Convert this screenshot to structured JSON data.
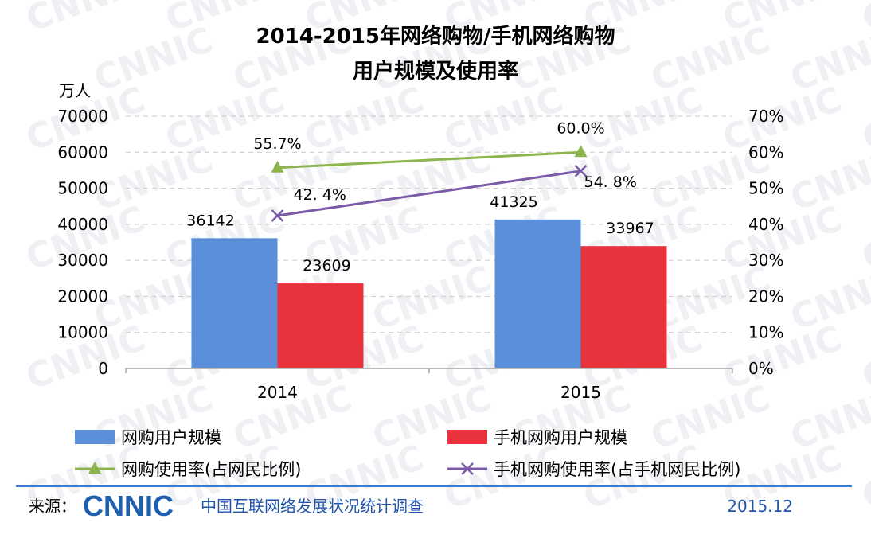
{
  "chart_data": {
    "type": "bar",
    "title_line1": "2014-2015年网络购物/手机网络购物",
    "title_line2": "用户规模及使用率",
    "ylabel_left": "万人",
    "categories": [
      "2014",
      "2015"
    ],
    "left_ticks": [
      "0",
      "10000",
      "20000",
      "30000",
      "40000",
      "50000",
      "60000",
      "70000"
    ],
    "right_ticks": [
      "0%",
      "10%",
      "20%",
      "30%",
      "40%",
      "50%",
      "60%",
      "70%"
    ],
    "ylim_left": [
      0,
      70000
    ],
    "ylim_right": [
      0,
      70
    ],
    "grid": true,
    "series": [
      {
        "name": "网购用户规模",
        "kind": "bar",
        "axis": "left",
        "color": "#5b8fd9",
        "values": [
          36142,
          41325
        ],
        "labels": [
          "36142",
          "41325"
        ]
      },
      {
        "name": "手机网购用户规模",
        "kind": "bar",
        "axis": "left",
        "color": "#e8323c",
        "values": [
          23609,
          33967
        ],
        "labels": [
          "23609",
          "33967"
        ]
      },
      {
        "name": "网购使用率(占网民比例)",
        "kind": "line",
        "axis": "right",
        "marker": "triangle",
        "color": "#8db54e",
        "values": [
          55.7,
          60.0
        ],
        "labels": [
          "55.7%",
          "60.0%"
        ]
      },
      {
        "name": "手机网购使用率(占手机网民比例)",
        "kind": "line",
        "axis": "right",
        "marker": "x",
        "color": "#7b5ba8",
        "values": [
          42.4,
          54.8
        ],
        "labels": [
          "42. 4%",
          "54. 8%"
        ]
      }
    ],
    "legend_position": "bottom"
  },
  "footer": {
    "source_label": "来源：",
    "logo_text": "CNNIC",
    "survey_name": "中国互联网络发展状况统计调查",
    "date": "2015.12"
  },
  "watermark": {
    "text": "CNNIC"
  },
  "colors": {
    "footer_line": "#3a7bd5",
    "logo": "#1f5fb0",
    "survey_text": "#2255aa"
  }
}
